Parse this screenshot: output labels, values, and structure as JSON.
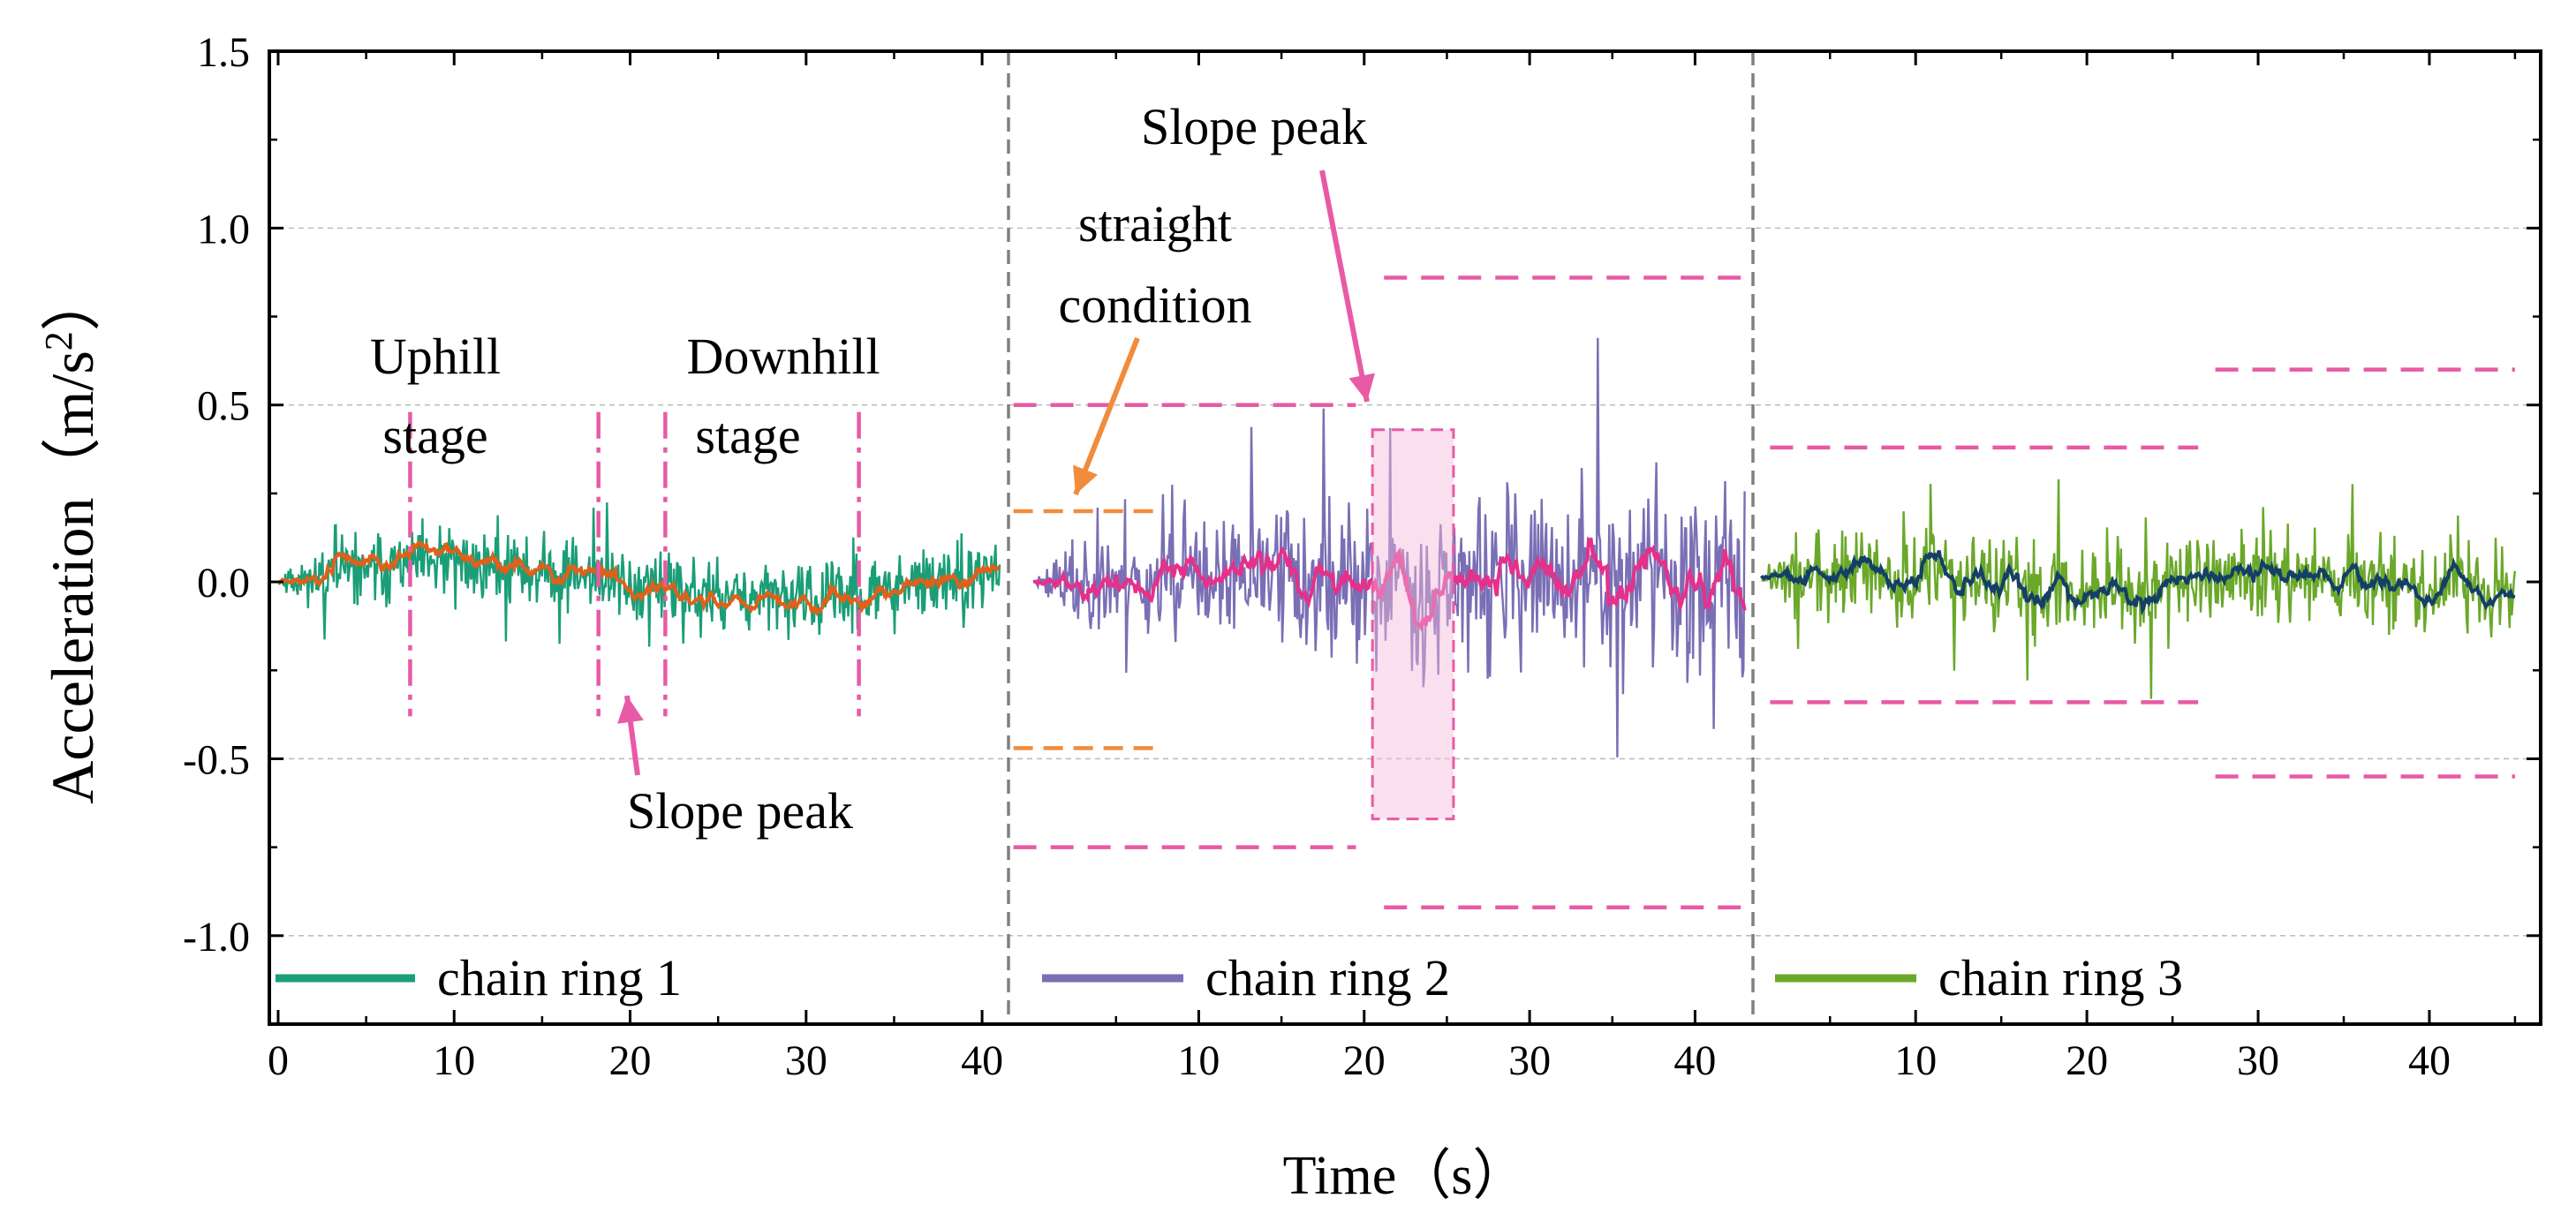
{
  "chart_data": {
    "type": "line",
    "ylabel": "Acceleration（m/s",
    "ylabel_sup": "2",
    "ylabel_close": "）",
    "xlabel": "Time（s）",
    "ylim": [
      -1.25,
      1.5
    ],
    "y_ticks": [
      "1.5",
      "1.0",
      "0.5",
      "0.0",
      "-0.5",
      "-1.0"
    ],
    "y_tick_values": [
      1.5,
      1.0,
      0.5,
      0.0,
      -0.5,
      -1.0
    ],
    "grid_values": [
      1.0,
      0.5,
      -0.5,
      -1.0
    ],
    "panels": [
      {
        "xlim": [
          -0.5,
          41.5
        ],
        "x_ticks": [
          "0",
          "10",
          "20",
          "30",
          "40"
        ],
        "x_tick_values": [
          0,
          10,
          20,
          30,
          40
        ],
        "t_range": [
          0,
          41
        ],
        "legend": "chain ring 1",
        "raw_color": "#1a9e77",
        "smooth_color": "#e0601a",
        "raw_amp": 0.13,
        "smooth_amp": 0.03,
        "seed": 11
      },
      {
        "xlim": [
          -1.5,
          43.5
        ],
        "x_ticks": [
          "10",
          "20",
          "30",
          "40"
        ],
        "x_tick_values": [
          10,
          20,
          30,
          40
        ],
        "t_range": [
          0,
          43
        ],
        "legend": "chain ring 2",
        "raw_color": "#7a6fb5",
        "smooth_color": "#e6308a",
        "raw_amp": 0.32,
        "smooth_amp": 0.09,
        "seed": 23
      },
      {
        "xlim": [
          0.5,
          46.5
        ],
        "x_ticks": [
          "10",
          "20",
          "30",
          "40"
        ],
        "x_tick_values": [
          10,
          20,
          30,
          40
        ],
        "t_range": [
          1,
          45
        ],
        "legend": "chain ring 3",
        "raw_color": "#6aa82a",
        "smooth_color": "#143f66",
        "raw_amp": 0.16,
        "smooth_amp": 0.04,
        "seed": 37
      }
    ],
    "annotations": {
      "uphill": [
        "Uphill",
        "stage"
      ],
      "downhill": [
        "Downhill",
        "stage"
      ],
      "slope_peak_1": "Slope peak",
      "slope_peak_2": "Slope peak",
      "straight": [
        "straight",
        "condition"
      ]
    },
    "colors": {
      "dash": "#e85aa5",
      "orange": "#f08c3c",
      "divider": "#808080",
      "highlight": "#f4b8dc"
    }
  }
}
